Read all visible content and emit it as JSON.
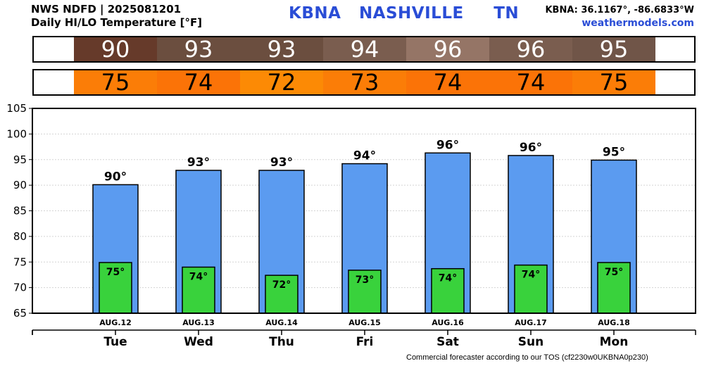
{
  "header": {
    "line1": "NWS NDFD | 2025081201",
    "line2": "Daily HI/LO Temperature [°F]",
    "station_id": "KBNA",
    "station_name": "NASHVILLE",
    "state": "TN",
    "coords": "KBNA: 36.1167°, -86.6833°W",
    "site": "weathermodels.com"
  },
  "footer": "Commercial forecaster according to our TOS (cf2230w0UKBNA0p230)",
  "colors": {
    "high_bar": "#5b9bf0",
    "low_bar": "#39d23c",
    "hi_strip": [
      "#663a2a",
      "#6b4e3f",
      "#6b4e3f",
      "#7a5d4f",
      "#957566",
      "#7a5d4f",
      "#705548"
    ],
    "lo_strip": [
      "#fb7d07",
      "#fb7307",
      "#fc8a05",
      "#fb7d07",
      "#fb7307",
      "#fb7307",
      "#fb7d07"
    ]
  },
  "strips": {
    "hi_values": [
      "90",
      "93",
      "93",
      "94",
      "96",
      "96",
      "95"
    ],
    "lo_values": [
      "75",
      "74",
      "72",
      "73",
      "74",
      "74",
      "75"
    ]
  },
  "chart_data": {
    "type": "bar",
    "categories": [
      "Tue",
      "Wed",
      "Thu",
      "Fri",
      "Sat",
      "Sun",
      "Mon"
    ],
    "dates": [
      "AUG.12",
      "AUG.13",
      "AUG.14",
      "AUG.15",
      "AUG.16",
      "AUG.17",
      "AUG.18"
    ],
    "series": [
      {
        "values": [
          90.1,
          92.9,
          92.9,
          94.2,
          96.3,
          95.8,
          94.9
        ],
        "labels": [
          "90°",
          "93°",
          "93°",
          "94°",
          "96°",
          "96°",
          "95°"
        ]
      },
      {
        "values": [
          74.9,
          74.0,
          72.4,
          73.4,
          73.7,
          74.4,
          74.9
        ],
        "labels": [
          "75°",
          "74°",
          "72°",
          "73°",
          "74°",
          "74°",
          "75°"
        ]
      }
    ],
    "ylim": [
      65,
      105
    ],
    "yticks": [
      65,
      70,
      75,
      80,
      85,
      90,
      95,
      100,
      105
    ],
    "grid": true
  }
}
